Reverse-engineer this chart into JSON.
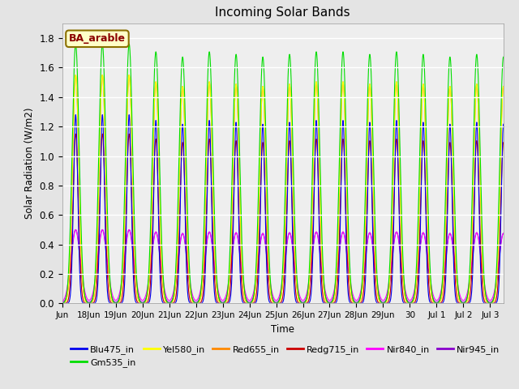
{
  "title": "Incoming Solar Bands",
  "xlabel": "Time",
  "ylabel": "Solar Radiation (W/m2)",
  "ylim": [
    0,
    1.9
  ],
  "yticks": [
    0.0,
    0.2,
    0.4,
    0.6,
    0.8,
    1.0,
    1.2,
    1.4,
    1.6,
    1.8
  ],
  "annotation": "BA_arable",
  "annotation_color": "#8B0000",
  "annotation_bg": "#FFFFC8",
  "annotation_border": "#8B7000",
  "colors": {
    "Blu475_in": "#0000EE",
    "Gm535_in": "#00DD00",
    "Yel580_in": "#FFFF00",
    "Red655_in": "#FF8800",
    "Redg715_in": "#CC0000",
    "Nir840_in": "#FF00FF",
    "Nir945_in": "#8800CC"
  },
  "peak_amplitudes": {
    "Blu475_in": 1.28,
    "Gm535_in": 1.76,
    "Yel580_in": 1.55,
    "Red655_in": 1.55,
    "Redg715_in": 1.15,
    "Nir840_in": 0.5,
    "Nir945_in": 0.5
  },
  "x_tick_labels": [
    "Jun",
    "18Jun",
    "19Jun",
    "20Jun",
    "21Jun",
    "22Jun",
    "23Jun",
    "24Jun",
    "25Jun",
    "26Jun",
    "27Jun",
    "28Jun",
    "29Jun",
    "30",
    "Jul 1",
    "Jul 2",
    "Jul 3"
  ],
  "tick_positions": [
    0,
    1,
    2,
    3,
    4,
    5,
    6,
    7,
    8,
    9,
    10,
    11,
    12,
    13,
    14,
    15,
    16
  ],
  "total_days": 16.5,
  "background_color": "#E4E4E4",
  "plot_bg": "#EEEEEE",
  "plot_order": [
    "Nir945_in",
    "Nir840_in",
    "Redg715_in",
    "Red655_in",
    "Yel580_in",
    "Gm535_in",
    "Blu475_in"
  ]
}
